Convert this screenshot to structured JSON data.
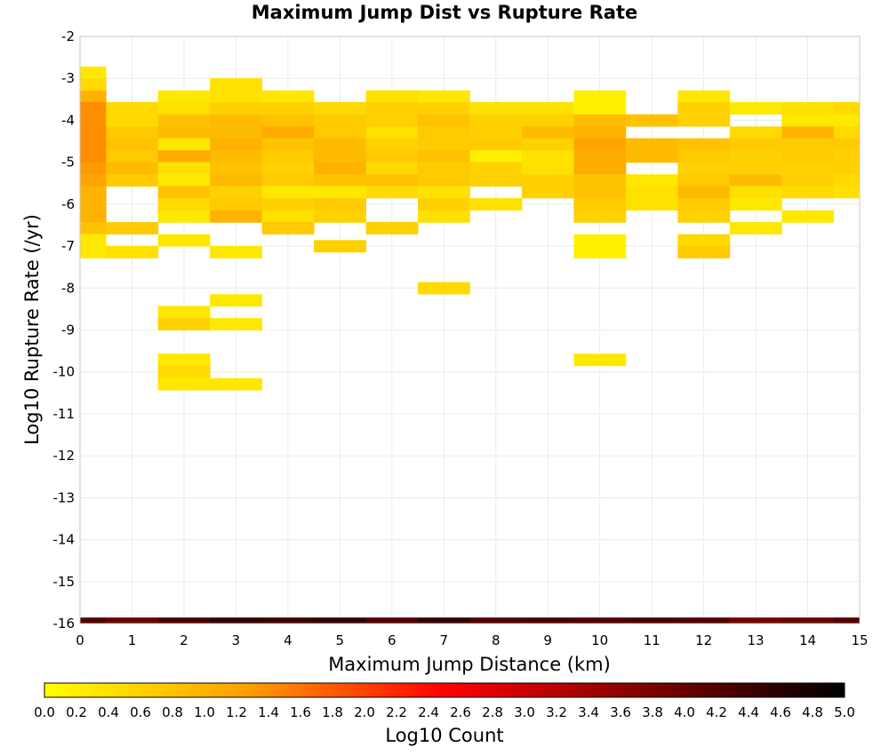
{
  "chart_data": {
    "type": "heatmap",
    "title": "Maximum Jump Dist vs Rupture Rate",
    "xlabel": "Maximum Jump Distance (km)",
    "ylabel": "Log10 Rupture Rate (/yr)",
    "xlim": [
      0,
      15
    ],
    "ylim": [
      -16,
      -2
    ],
    "x_ticks": [
      "0",
      "1",
      "2",
      "3",
      "4",
      "5",
      "6",
      "7",
      "8",
      "9",
      "10",
      "11",
      "12",
      "13",
      "14",
      "15"
    ],
    "y_ticks": [
      "-2",
      "-3",
      "-4",
      "-5",
      "-6",
      "-7",
      "-8",
      "-9",
      "-10",
      "-11",
      "-12",
      "-13",
      "-14",
      "-15",
      "-16"
    ],
    "x_bin_width": 1,
    "y_bin_width": 0.2857,
    "grid": true,
    "colorbar": {
      "label": "Log10 Count",
      "min": 0.0,
      "max": 5.0,
      "ticks": [
        "0.0",
        "0.2",
        "0.4",
        "0.6",
        "0.8",
        "1.0",
        "1.2",
        "1.4",
        "1.6",
        "1.8",
        "2.0",
        "2.2",
        "2.4",
        "2.6",
        "2.8",
        "3.0",
        "3.2",
        "3.4",
        "3.6",
        "3.8",
        "4.0",
        "4.2",
        "4.4",
        "4.6",
        "4.8",
        "5.0"
      ],
      "colors": [
        "#ffff00",
        "#ffa000",
        "#ff0000",
        "#800000",
        "#000000"
      ]
    },
    "columns": [
      {
        "x": 0,
        "cells": [
          [
            -2.86,
            0.3
          ],
          [
            -3.14,
            0.5
          ],
          [
            -3.43,
            1.0
          ],
          [
            -3.71,
            1.4
          ],
          [
            -4.0,
            1.4
          ],
          [
            -4.29,
            1.4
          ],
          [
            -4.57,
            1.4
          ],
          [
            -4.86,
            1.4
          ],
          [
            -5.14,
            1.3
          ],
          [
            -5.43,
            1.2
          ],
          [
            -5.71,
            1.0
          ],
          [
            -6.0,
            1.0
          ],
          [
            -6.29,
            1.0
          ],
          [
            -6.57,
            0.8
          ],
          [
            -6.86,
            0.3
          ],
          [
            -7.14,
            0.3
          ],
          [
            -16.0,
            4.2
          ]
        ]
      },
      {
        "x": 1,
        "cells": [
          [
            -3.71,
            0.5
          ],
          [
            -4.0,
            0.5
          ],
          [
            -4.29,
            0.7
          ],
          [
            -4.57,
            0.8
          ],
          [
            -4.86,
            0.7
          ],
          [
            -5.14,
            0.9
          ],
          [
            -5.43,
            0.7
          ],
          [
            -6.57,
            0.7
          ],
          [
            -7.14,
            0.4
          ],
          [
            -16.0,
            4.0
          ]
        ]
      },
      {
        "x": 2,
        "cells": [
          [
            -3.43,
            0.3
          ],
          [
            -3.71,
            0.4
          ],
          [
            -4.0,
            0.8
          ],
          [
            -4.29,
            0.9
          ],
          [
            -4.57,
            0.3
          ],
          [
            -4.86,
            1.1
          ],
          [
            -5.14,
            0.4
          ],
          [
            -5.43,
            0.3
          ],
          [
            -5.71,
            0.8
          ],
          [
            -6.0,
            0.5
          ],
          [
            -6.29,
            0.3
          ],
          [
            -6.86,
            0.3
          ],
          [
            -8.57,
            0.3
          ],
          [
            -8.86,
            0.6
          ],
          [
            -9.71,
            0.3
          ],
          [
            -10.0,
            0.5
          ],
          [
            -10.29,
            0.3
          ],
          [
            -16.0,
            4.3
          ]
        ]
      },
      {
        "x": 3,
        "cells": [
          [
            -3.14,
            0.4
          ],
          [
            -3.43,
            0.4
          ],
          [
            -3.71,
            0.6
          ],
          [
            -4.0,
            0.9
          ],
          [
            -4.29,
            0.9
          ],
          [
            -4.57,
            1.0
          ],
          [
            -4.86,
            0.9
          ],
          [
            -5.14,
            0.8
          ],
          [
            -5.43,
            0.9
          ],
          [
            -5.71,
            0.6
          ],
          [
            -6.0,
            0.7
          ],
          [
            -6.29,
            1.0
          ],
          [
            -7.14,
            0.3
          ],
          [
            -8.29,
            0.3
          ],
          [
            -8.86,
            0.3
          ],
          [
            -10.29,
            0.3
          ],
          [
            -16.0,
            4.5
          ]
        ]
      },
      {
        "x": 4,
        "cells": [
          [
            -3.43,
            0.3
          ],
          [
            -3.71,
            0.6
          ],
          [
            -4.0,
            0.8
          ],
          [
            -4.29,
            1.1
          ],
          [
            -4.57,
            0.8
          ],
          [
            -4.86,
            0.7
          ],
          [
            -5.14,
            0.6
          ],
          [
            -5.43,
            0.7
          ],
          [
            -5.71,
            0.3
          ],
          [
            -6.0,
            0.6
          ],
          [
            -6.29,
            0.4
          ],
          [
            -6.57,
            0.7
          ],
          [
            -16.0,
            4.4
          ]
        ]
      },
      {
        "x": 5,
        "cells": [
          [
            -3.71,
            0.5
          ],
          [
            -4.0,
            0.7
          ],
          [
            -4.29,
            0.7
          ],
          [
            -4.57,
            0.9
          ],
          [
            -4.86,
            0.9
          ],
          [
            -5.14,
            1.0
          ],
          [
            -5.43,
            0.8
          ],
          [
            -5.71,
            0.3
          ],
          [
            -6.0,
            0.7
          ],
          [
            -6.29,
            0.6
          ],
          [
            -7.0,
            0.6
          ],
          [
            -16.0,
            4.5
          ]
        ]
      },
      {
        "x": 6,
        "cells": [
          [
            -3.43,
            0.4
          ],
          [
            -3.71,
            0.6
          ],
          [
            -4.0,
            0.6
          ],
          [
            -4.29,
            0.4
          ],
          [
            -4.57,
            0.6
          ],
          [
            -4.86,
            0.7
          ],
          [
            -5.14,
            0.5
          ],
          [
            -5.43,
            0.8
          ],
          [
            -5.71,
            0.5
          ],
          [
            -6.57,
            0.6
          ],
          [
            -16.0,
            4.2
          ]
        ]
      },
      {
        "x": 7,
        "cells": [
          [
            -3.43,
            0.3
          ],
          [
            -3.71,
            0.6
          ],
          [
            -4.0,
            0.8
          ],
          [
            -4.29,
            0.7
          ],
          [
            -4.57,
            0.7
          ],
          [
            -4.86,
            0.8
          ],
          [
            -5.14,
            0.7
          ],
          [
            -5.43,
            0.7
          ],
          [
            -5.71,
            0.4
          ],
          [
            -6.0,
            0.6
          ],
          [
            -6.29,
            0.4
          ],
          [
            -8.0,
            0.5
          ],
          [
            -16.0,
            4.5
          ]
        ]
      },
      {
        "x": 8,
        "cells": [
          [
            -3.71,
            0.4
          ],
          [
            -4.0,
            0.6
          ],
          [
            -4.29,
            0.6
          ],
          [
            -4.57,
            0.7
          ],
          [
            -4.86,
            0.2
          ],
          [
            -5.14,
            0.6
          ],
          [
            -5.43,
            0.6
          ],
          [
            -6.0,
            0.4
          ],
          [
            -16.0,
            4.2
          ]
        ]
      },
      {
        "x": 9,
        "cells": [
          [
            -3.71,
            0.4
          ],
          [
            -4.0,
            0.6
          ],
          [
            -4.29,
            0.9
          ],
          [
            -4.57,
            0.6
          ],
          [
            -4.86,
            0.4
          ],
          [
            -5.14,
            0.4
          ],
          [
            -5.43,
            0.6
          ],
          [
            -5.71,
            0.6
          ],
          [
            -16.0,
            4.3
          ]
        ]
      },
      {
        "x": 10,
        "cells": [
          [
            -3.43,
            0.2
          ],
          [
            -3.71,
            0.2
          ],
          [
            -4.0,
            0.9
          ],
          [
            -4.29,
            1.0
          ],
          [
            -4.57,
            1.2
          ],
          [
            -4.86,
            1.1
          ],
          [
            -5.14,
            1.1
          ],
          [
            -5.43,
            0.8
          ],
          [
            -5.71,
            0.8
          ],
          [
            -6.0,
            0.7
          ],
          [
            -6.29,
            0.6
          ],
          [
            -6.86,
            0.2
          ],
          [
            -7.14,
            0.2
          ],
          [
            -9.71,
            0.3
          ],
          [
            -16.0,
            4.2
          ]
        ]
      },
      {
        "x": 11,
        "cells": [
          [
            -4.0,
            0.8
          ],
          [
            -4.57,
            0.9
          ],
          [
            -4.86,
            0.9
          ],
          [
            -5.43,
            0.3
          ],
          [
            -5.71,
            0.4
          ],
          [
            -6.0,
            0.4
          ],
          [
            -16.0,
            4.3
          ]
        ]
      },
      {
        "x": 12,
        "cells": [
          [
            -3.43,
            0.3
          ],
          [
            -3.71,
            0.6
          ],
          [
            -4.0,
            0.6
          ],
          [
            -4.57,
            0.8
          ],
          [
            -4.86,
            0.7
          ],
          [
            -5.14,
            0.6
          ],
          [
            -5.43,
            0.7
          ],
          [
            -5.71,
            0.9
          ],
          [
            -6.0,
            0.7
          ],
          [
            -6.29,
            0.6
          ],
          [
            -6.86,
            0.5
          ],
          [
            -7.14,
            0.7
          ],
          [
            -16.0,
            4.2
          ]
        ]
      },
      {
        "x": 13,
        "cells": [
          [
            -3.71,
            0.3
          ],
          [
            -4.29,
            0.5
          ],
          [
            -4.57,
            0.7
          ],
          [
            -4.86,
            0.6
          ],
          [
            -5.14,
            0.6
          ],
          [
            -5.43,
            0.9
          ],
          [
            -5.71,
            0.4
          ],
          [
            -6.0,
            0.3
          ],
          [
            -6.57,
            0.3
          ],
          [
            -16.0,
            3.9
          ]
        ]
      },
      {
        "x": 14,
        "cells": [
          [
            -3.71,
            0.4
          ],
          [
            -4.0,
            0.3
          ],
          [
            -4.29,
            1.0
          ],
          [
            -4.57,
            0.7
          ],
          [
            -4.86,
            0.7
          ],
          [
            -5.14,
            0.6
          ],
          [
            -5.43,
            0.6
          ],
          [
            -5.71,
            0.5
          ],
          [
            -6.29,
            0.3
          ],
          [
            -16.0,
            4.0
          ]
        ]
      },
      {
        "x": 15,
        "cells": [
          [
            -3.71,
            0.5
          ],
          [
            -4.0,
            0.3
          ],
          [
            -4.29,
            0.5
          ],
          [
            -4.57,
            0.7
          ],
          [
            -4.86,
            0.6
          ],
          [
            -5.14,
            0.6
          ],
          [
            -5.43,
            0.5
          ],
          [
            -5.71,
            0.4
          ],
          [
            -16.0,
            4.2
          ]
        ]
      }
    ]
  }
}
